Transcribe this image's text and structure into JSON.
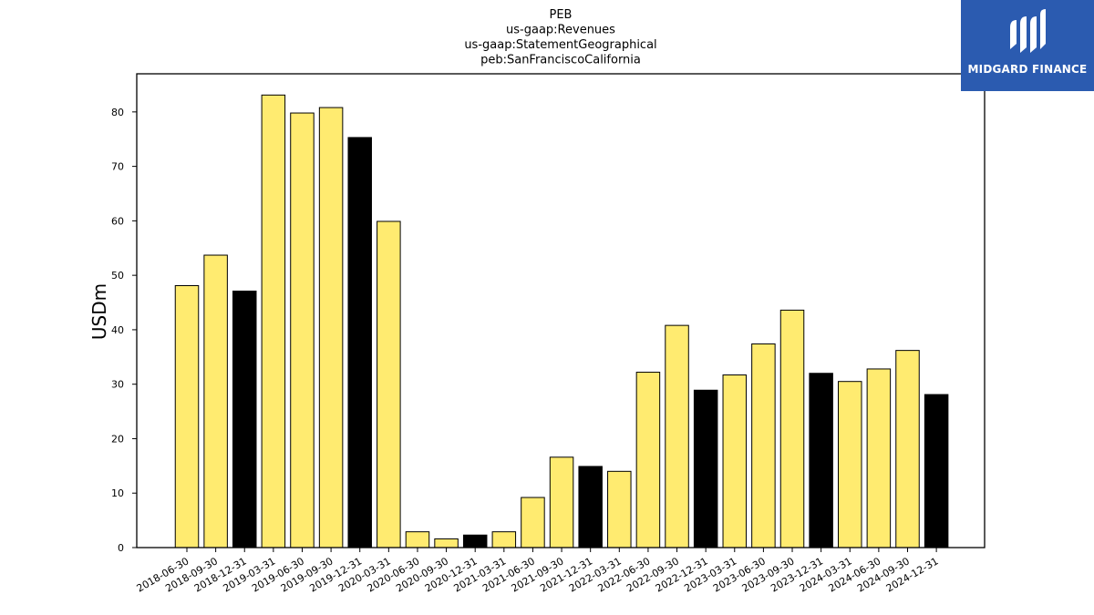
{
  "chart_data": {
    "type": "bar",
    "title_lines": [
      "PEB",
      "us-gaap:Revenues",
      "us-gaap:StatementGeographical",
      "peb:SanFranciscoCalifornia"
    ],
    "ylabel": "USDm",
    "xlabel": "",
    "ylim": [
      0,
      87
    ],
    "yticks": [
      0,
      10,
      20,
      30,
      40,
      50,
      60,
      70,
      80
    ],
    "categories": [
      "2018-06-30",
      "2018-09-30",
      "2018-12-31",
      "2019-03-31",
      "2019-06-30",
      "2019-09-30",
      "2019-12-31",
      "2020-03-31",
      "2020-06-30",
      "2020-09-30",
      "2020-12-31",
      "2021-03-31",
      "2021-06-30",
      "2021-09-30",
      "2021-12-31",
      "2022-03-31",
      "2022-06-30",
      "2022-09-30",
      "2022-12-31",
      "2023-03-31",
      "2023-06-30",
      "2023-09-30",
      "2023-12-31",
      "2024-03-31",
      "2024-06-30",
      "2024-09-30",
      "2024-12-31"
    ],
    "values": [
      48.1,
      53.7,
      47.1,
      83.1,
      79.8,
      80.8,
      75.3,
      59.9,
      2.9,
      1.6,
      2.3,
      2.9,
      9.2,
      16.6,
      14.9,
      14.0,
      32.2,
      40.8,
      28.9,
      31.7,
      37.4,
      43.6,
      32.0,
      30.5,
      32.8,
      36.2,
      28.1
    ],
    "bar_colors": [
      "#ffeb70",
      "#ffeb70",
      "#000000",
      "#ffeb70",
      "#ffeb70",
      "#ffeb70",
      "#000000",
      "#ffeb70",
      "#ffeb70",
      "#ffeb70",
      "#000000",
      "#ffeb70",
      "#ffeb70",
      "#ffeb70",
      "#000000",
      "#ffeb70",
      "#ffeb70",
      "#ffeb70",
      "#000000",
      "#ffeb70",
      "#ffeb70",
      "#ffeb70",
      "#000000",
      "#ffeb70",
      "#ffeb70",
      "#ffeb70",
      "#000000"
    ],
    "grid": false
  },
  "logo": {
    "text": "MIDGARD FINANCE",
    "background": "#2b5bb0"
  }
}
